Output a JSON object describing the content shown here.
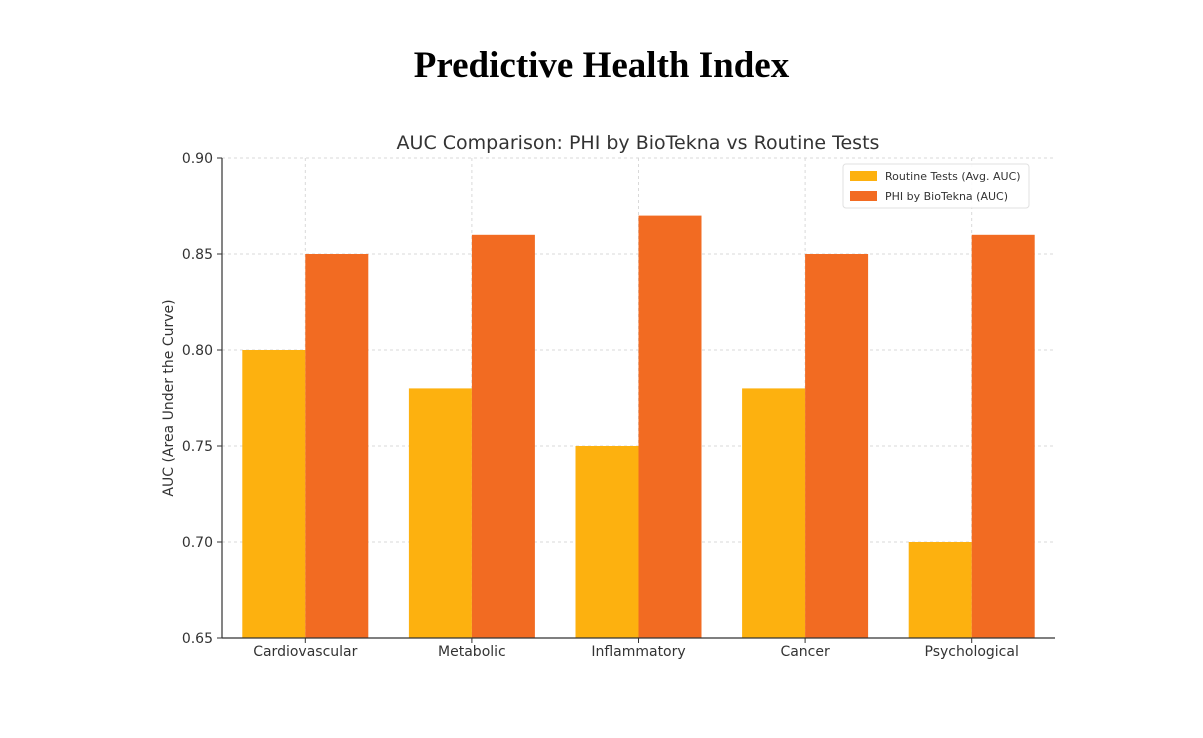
{
  "page": {
    "title": "Predictive Health Index"
  },
  "chart_data": {
    "type": "bar",
    "title": "AUC Comparison: PHI by BioTekna vs Routine Tests",
    "xlabel": "",
    "ylabel": "AUC (Area Under the Curve)",
    "ylim": [
      0.65,
      0.9
    ],
    "yticks": [
      "0.65",
      "0.70",
      "0.75",
      "0.80",
      "0.85",
      "0.90"
    ],
    "grid": true,
    "legend_position": "top-right",
    "categories": [
      "Cardiovascular",
      "Metabolic",
      "Inflammatory",
      "Cancer",
      "Psychological"
    ],
    "series": [
      {
        "name": "Routine Tests (Avg. AUC)",
        "color": "#FDB10F",
        "values": [
          0.8,
          0.78,
          0.75,
          0.78,
          0.7
        ]
      },
      {
        "name": "PHI by BioTekna (AUC)",
        "color": "#F26B22",
        "values": [
          0.85,
          0.86,
          0.87,
          0.85,
          0.86
        ]
      }
    ]
  }
}
